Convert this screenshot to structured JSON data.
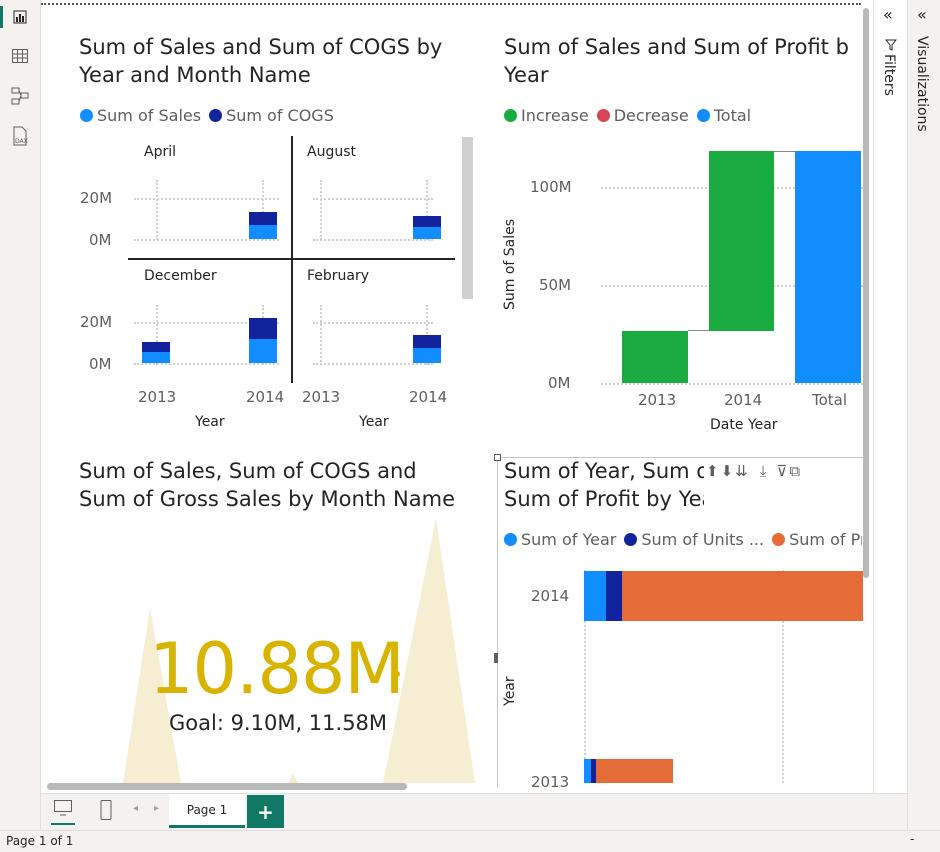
{
  "colors": {
    "sales": "#118dff",
    "cogs": "#12239e",
    "profit": "#e66c37",
    "increase": "#1aab40",
    "decrease": "#d64554",
    "total": "#118dff",
    "kpi": "#d8b300",
    "accent": "#117865"
  },
  "rail": {
    "icons": [
      "report-view-icon",
      "table-view-icon",
      "model-view-icon",
      "dax-query-icon"
    ]
  },
  "visual1": {
    "title": "Sum of Sales and Sum of COGS by\nYear and Month Name",
    "legend": [
      "Sum of  Sales",
      "Sum of COGS"
    ],
    "panels": [
      {
        "label": "April"
      },
      {
        "label": "August"
      },
      {
        "label": "December"
      },
      {
        "label": "February"
      }
    ],
    "y_ticks": [
      "20M",
      "0M"
    ],
    "x_ticks": [
      "2013",
      "2014"
    ],
    "x_title": "Year"
  },
  "visual2": {
    "title": "Sum of Sales and Sum of Profit b\nYear",
    "legend": [
      "Increase",
      "Decrease",
      "Total"
    ],
    "y_ticks": [
      "100M",
      "50M",
      "0M"
    ],
    "y_title": "Sum of Sales",
    "x_ticks": [
      "2013",
      "2014",
      "Total"
    ],
    "x_title": "Date Year"
  },
  "visual3": {
    "title": "Sum of Sales, Sum of COGS and\nSum of Gross Sales by Month Name",
    "value": "10.88M",
    "goal": "Goal: 9.10M, 11.58M"
  },
  "visual4": {
    "title": "Sum of Year, Sum o\nSum of Profit by Year",
    "legend": [
      "Sum of Year",
      "Sum of Units ...",
      "Sum of Pro"
    ],
    "y_title": "Year",
    "y_ticks": [
      "2014",
      "2013"
    ]
  },
  "chart_data": [
    {
      "type": "bar",
      "title": "Sum of Sales and Sum of COGS by Year and Month Name",
      "xlabel": "Year",
      "small_multiples": [
        "April",
        "August",
        "December",
        "February"
      ],
      "categories": [
        "2013",
        "2014"
      ],
      "series": [
        {
          "name": "Sum of  Sales",
          "values_by_panel": {
            "April": [
              0,
              6
            ],
            "August": [
              0,
              6
            ],
            "December": [
              6,
              10
            ],
            "February": [
              0,
              7
            ]
          }
        },
        {
          "name": "Sum of COGS",
          "values_by_panel": {
            "April": [
              0,
              7
            ],
            "August": [
              0,
              6
            ],
            "December": [
              5,
              10
            ],
            "February": [
              0,
              7
            ]
          }
        }
      ],
      "units": "M"
    },
    {
      "type": "bar",
      "subtype": "waterfall",
      "title": "Sum of Sales and Sum of Profit by Year",
      "xlabel": "Date Year",
      "ylabel": "Sum of Sales",
      "categories": [
        "2013",
        "2014",
        "Total"
      ],
      "values": [
        27,
        92,
        119
      ],
      "kinds": [
        "Increase",
        "Increase",
        "Total"
      ],
      "ylim": [
        0,
        120
      ],
      "units": "M"
    },
    {
      "type": "bar",
      "orientation": "horizontal",
      "title": "Sum of Year, Sum of Units Sold and Sum of Profit by Year",
      "ylabel": "Year",
      "categories": [
        "2014",
        "2013"
      ],
      "series": [
        {
          "name": "Sum of Year",
          "values": [
            2014,
            1007
          ]
        },
        {
          "name": "Sum of Units ...",
          "values": [
            1500,
            500
          ]
        },
        {
          "name": "Sum of Pro",
          "values": [
            22000,
            7000
          ]
        }
      ]
    }
  ],
  "bottom": {
    "page_tab": "Page 1",
    "add_page": "+",
    "status": "Page 1 of 1",
    "status_right": "-"
  },
  "panes": {
    "filters": "Filters",
    "visualizations": "Visualizations"
  }
}
